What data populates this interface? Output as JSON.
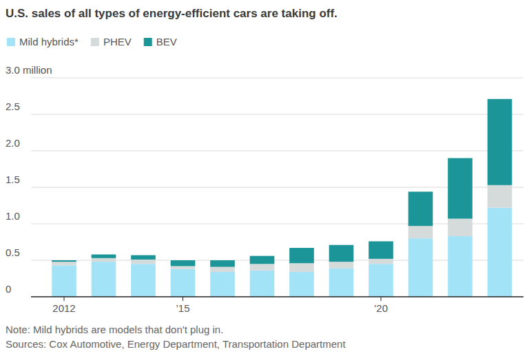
{
  "chart_data": {
    "type": "bar",
    "title": "U.S. sales of all types of energy-efficient cars are taking off.",
    "note": "Note: Mild hybrids are models that don't plug in.",
    "source": "Sources: Cox Automotive, Energy Department, Transportation Department",
    "stacked": true,
    "grid": true,
    "legend": "top-left",
    "categories": [
      "2012",
      null,
      null,
      "’15",
      null,
      null,
      null,
      null,
      "’20",
      null,
      null,
      null
    ],
    "series": [
      {
        "name": "Mild hybrids*",
        "color": "#a3e3f8",
        "values": [
          0.43,
          0.48,
          0.45,
          0.38,
          0.34,
          0.36,
          0.34,
          0.39,
          0.45,
          0.8,
          0.83,
          1.22
        ]
      },
      {
        "name": "PHEV",
        "color": "#d5dada",
        "values": [
          0.05,
          0.05,
          0.06,
          0.04,
          0.07,
          0.09,
          0.12,
          0.09,
          0.07,
          0.17,
          0.24,
          0.31
        ]
      },
      {
        "name": "BEV",
        "color": "#1b9598",
        "values": [
          0.02,
          0.05,
          0.06,
          0.08,
          0.09,
          0.11,
          0.21,
          0.23,
          0.24,
          0.47,
          0.83,
          1.18
        ]
      }
    ],
    "ylim": [
      0,
      3
    ],
    "yticks": [
      0,
      0.5,
      {
        "value": 1,
        "label": "1.0"
      },
      1.5,
      {
        "value": 2,
        "label": "2.0"
      },
      2.5,
      {
        "value": 3,
        "label": "3.0 million"
      }
    ]
  }
}
